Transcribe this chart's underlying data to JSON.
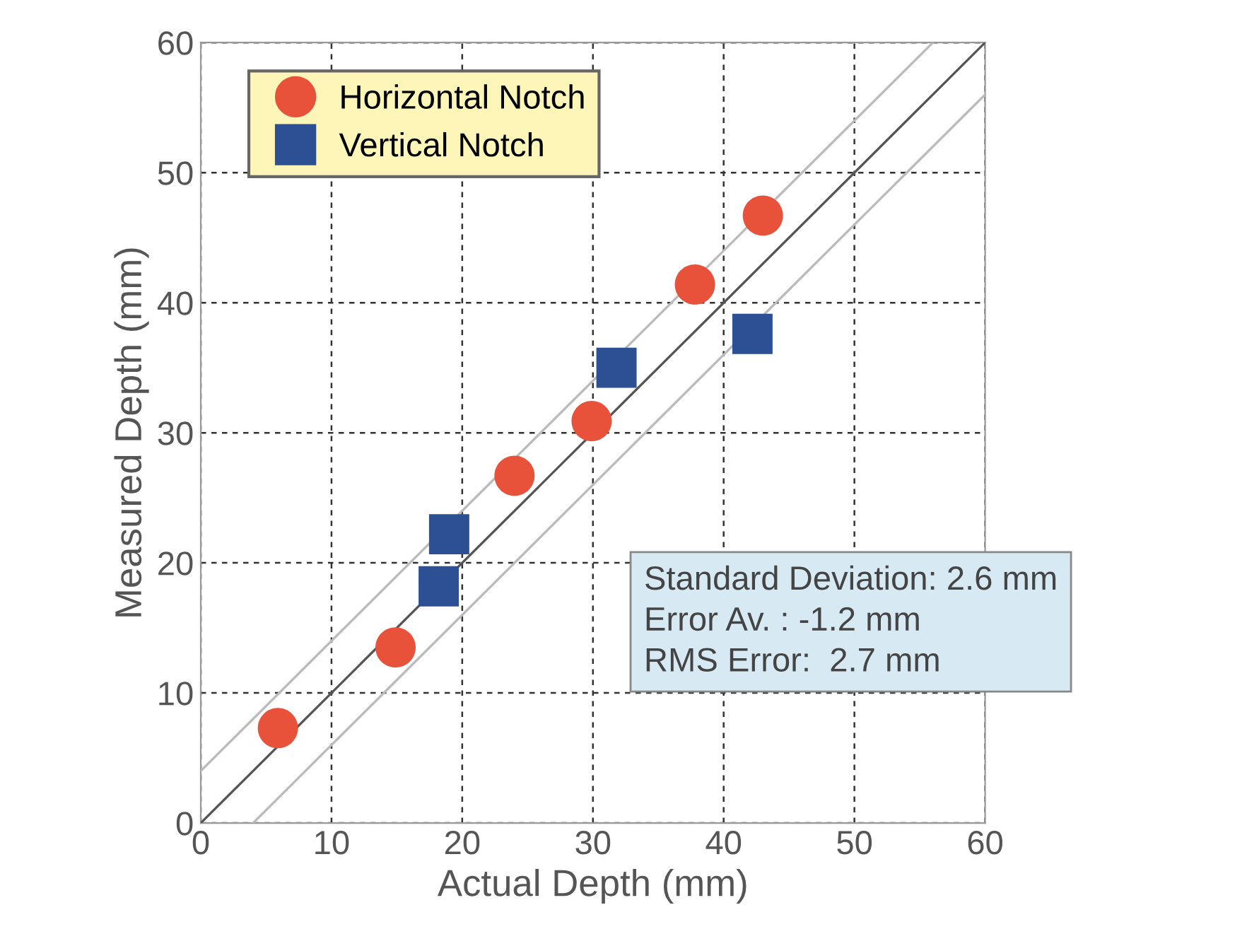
{
  "chart_data": {
    "type": "scatter",
    "xlabel": "Actual Depth (mm)",
    "ylabel": "Measured Depth (mm)",
    "xlim": [
      0,
      60
    ],
    "ylim": [
      0,
      60
    ],
    "xticks": [
      0,
      10,
      20,
      30,
      40,
      50,
      60
    ],
    "yticks": [
      0,
      10,
      20,
      30,
      40,
      50,
      60
    ],
    "grid": true,
    "legend": "top left",
    "series": [
      {
        "name": "Horizontal Notch",
        "color": "#e8523a",
        "marker": "circle",
        "x": [
          5.9,
          14.9,
          24.0,
          29.9,
          37.8,
          43.0
        ],
        "values": [
          7.3,
          13.5,
          26.7,
          30.9,
          41.4,
          46.7
        ]
      },
      {
        "name": "Vertical Notch",
        "color": "#2d4f94",
        "marker": "square",
        "x": [
          18.2,
          19.0,
          31.8,
          42.2
        ],
        "values": [
          18.2,
          22.2,
          35.0,
          37.6
        ]
      },
      {
        "type": "line",
        "color": "#555555",
        "x": [
          0,
          60
        ],
        "values": [
          0,
          60
        ]
      },
      {
        "type": "line",
        "color": "#bbbbbb",
        "x": [
          0,
          56
        ],
        "values": [
          4,
          60
        ]
      },
      {
        "type": "line",
        "color": "#bbbbbb",
        "x": [
          4,
          60
        ],
        "values": [
          0,
          56
        ]
      }
    ],
    "annotations": [
      "Standard Deviation: 2.6 mm\nError Av. : -1.2 mm\nRMS Error:  2.7 mm"
    ]
  }
}
